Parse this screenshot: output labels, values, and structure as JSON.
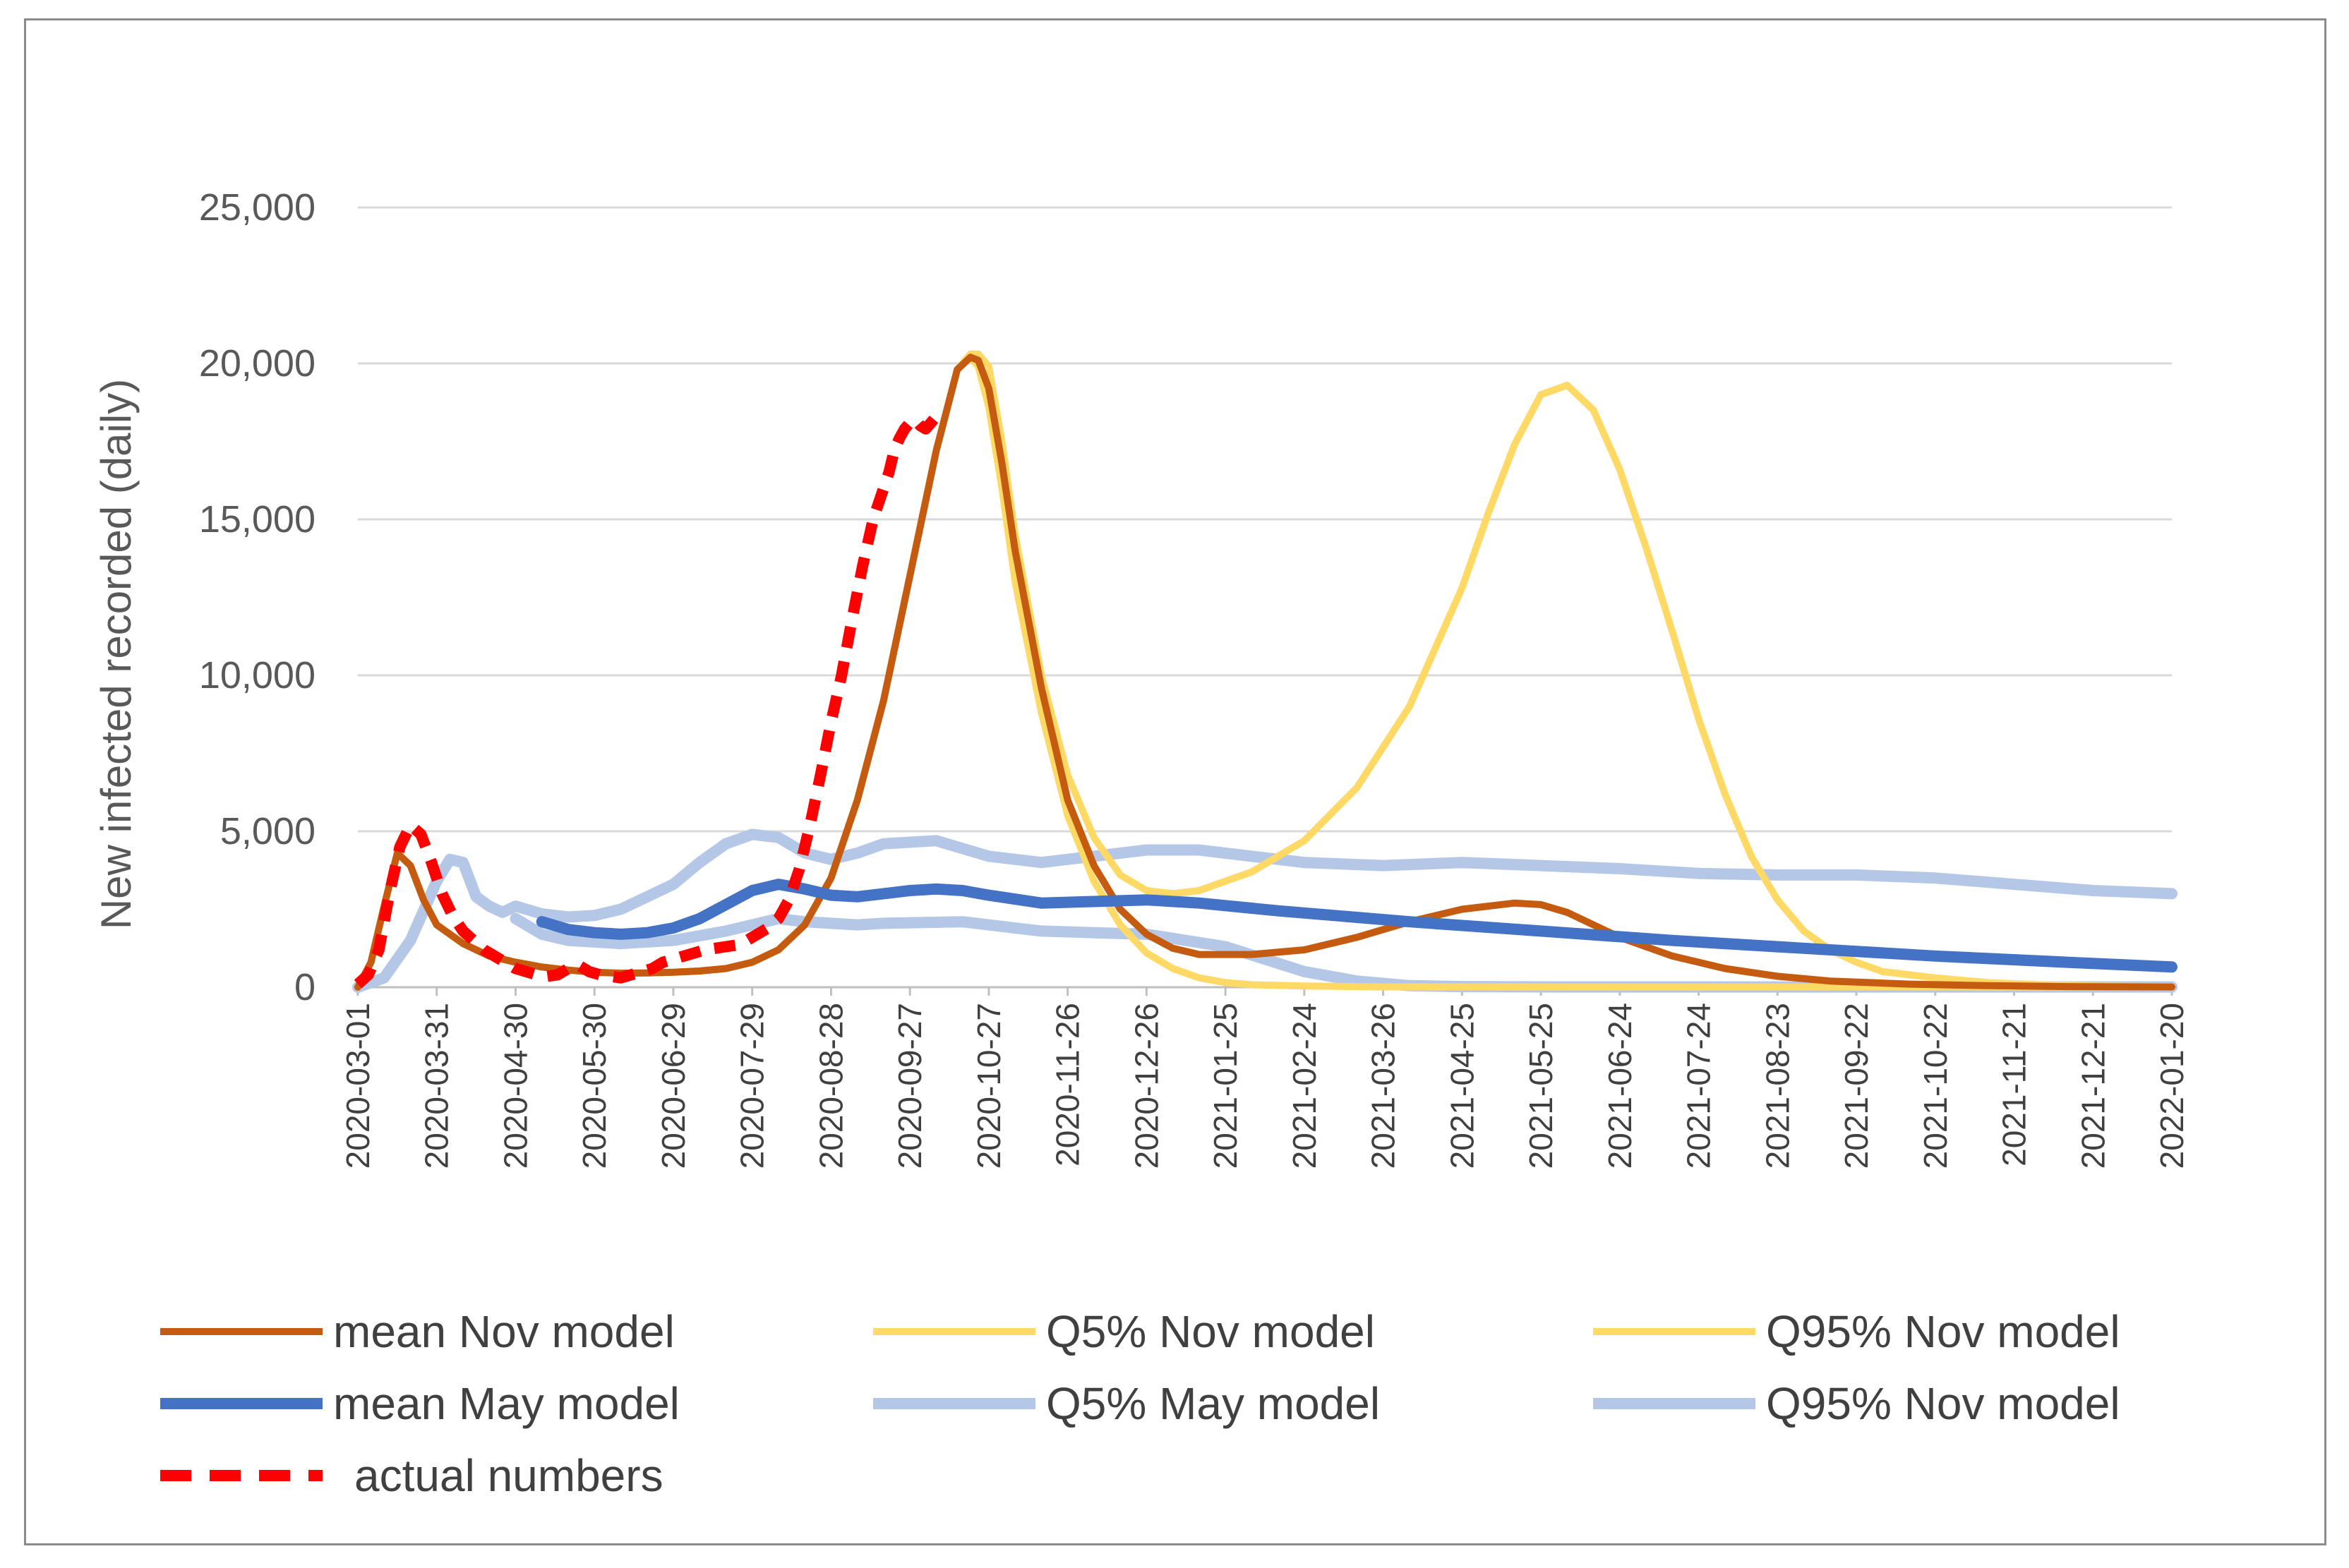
{
  "chart_data": {
    "type": "line",
    "title": "",
    "xlabel": "",
    "ylabel": "New infected recorded (daily)",
    "ylim": [
      0,
      25000
    ],
    "yticks": [
      0,
      5000,
      10000,
      15000,
      20000,
      25000
    ],
    "ytick_labels": [
      "0",
      "5,000",
      "10,000",
      "15,000",
      "20,000",
      "25,000"
    ],
    "xlim_days": [
      0,
      690
    ],
    "x_tick_labels": [
      "2020-03-01",
      "2020-03-31",
      "2020-04-30",
      "2020-05-30",
      "2020-06-29",
      "2020-07-29",
      "2020-08-28",
      "2020-09-27",
      "2020-10-27",
      "2020-11-26",
      "2020-12-26",
      "2021-01-25",
      "2021-02-24",
      "2021-03-26",
      "2021-04-25",
      "2021-05-25",
      "2021-06-24",
      "2021-07-24",
      "2021-08-23",
      "2021-09-22",
      "2021-10-22",
      "2021-11-21",
      "2021-12-21",
      "2022-01-20"
    ],
    "x_unit": "days since 2020-03-01",
    "gridlines": "horizontal",
    "legend_position": "bottom",
    "series": [
      {
        "name": "Q5% May model",
        "color": "#B4C7E7",
        "style": "solid",
        "weight": "thick",
        "x": [
          60,
          70,
          80,
          100,
          120,
          140,
          160,
          170,
          180,
          190,
          200,
          230,
          260,
          280,
          300,
          330,
          360,
          380,
          400,
          420,
          460,
          500,
          540,
          580,
          620,
          660,
          690
        ],
        "y": [
          2200,
          1700,
          1500,
          1400,
          1500,
          1800,
          2200,
          2100,
          2050,
          2000,
          2050,
          2100,
          1800,
          1750,
          1700,
          1300,
          500,
          200,
          50,
          20,
          10,
          10,
          10,
          10,
          10,
          10,
          10
        ]
      },
      {
        "name": "Q95% Nov model",
        "color": "#B4C7E7",
        "style": "solid",
        "weight": "thick",
        "x": [
          0,
          10,
          20,
          30,
          35,
          40,
          45,
          50,
          55,
          60,
          70,
          80,
          90,
          100,
          120,
          130,
          140,
          150,
          160,
          170,
          180,
          190,
          200,
          220,
          240,
          260,
          280,
          300,
          320,
          340,
          360,
          390,
          420,
          450,
          480,
          510,
          540,
          570,
          600,
          630,
          660,
          690
        ],
        "y": [
          0,
          300,
          1500,
          3400,
          4100,
          4000,
          2900,
          2600,
          2400,
          2600,
          2350,
          2250,
          2300,
          2500,
          3300,
          4000,
          4600,
          4900,
          4800,
          4300,
          4100,
          4300,
          4600,
          4700,
          4200,
          4000,
          4200,
          4400,
          4400,
          4200,
          4000,
          3900,
          4000,
          3900,
          3800,
          3650,
          3600,
          3600,
          3500,
          3300,
          3100,
          3000
        ]
      },
      {
        "name": "Q5% Nov model",
        "color": "#FFD966",
        "style": "solid",
        "weight": "normal",
        "x": [
          0,
          5,
          10,
          15,
          20,
          25,
          30,
          40,
          50,
          60,
          70,
          80,
          90,
          100,
          110,
          120,
          130,
          140,
          150,
          160,
          170,
          180,
          190,
          200,
          210,
          220,
          228,
          233,
          236,
          240,
          245,
          250,
          260,
          270,
          280,
          290,
          300,
          310,
          320,
          330,
          340,
          360,
          380,
          400,
          420,
          440,
          460,
          480,
          500,
          540,
          580,
          620,
          660,
          690
        ],
        "y": [
          0,
          800,
          2600,
          4300,
          3900,
          2800,
          2000,
          1400,
          1000,
          800,
          650,
          550,
          480,
          450,
          460,
          480,
          520,
          600,
          800,
          1200,
          2000,
          3500,
          6000,
          9200,
          13200,
          17200,
          19800,
          20200,
          19900,
          18600,
          16000,
          13000,
          8800,
          5500,
          3400,
          2000,
          1100,
          600,
          300,
          150,
          80,
          40,
          20,
          10,
          10,
          10,
          10,
          10,
          10,
          10,
          10,
          10,
          10,
          10
        ]
      },
      {
        "name": "Q95% Nov model",
        "color": "#FFD966",
        "style": "solid",
        "weight": "normal",
        "x": [
          0,
          5,
          10,
          15,
          20,
          25,
          30,
          40,
          50,
          60,
          70,
          80,
          90,
          100,
          110,
          120,
          130,
          140,
          150,
          160,
          170,
          180,
          190,
          200,
          210,
          220,
          228,
          233,
          236,
          240,
          245,
          250,
          260,
          270,
          280,
          290,
          300,
          310,
          320,
          340,
          360,
          380,
          400,
          420,
          430,
          440,
          450,
          460,
          470,
          480,
          490,
          500,
          510,
          520,
          530,
          540,
          550,
          560,
          570,
          580,
          600,
          620,
          640,
          660,
          690
        ],
        "y": [
          0,
          800,
          2600,
          4300,
          3900,
          2800,
          2000,
          1400,
          1000,
          800,
          650,
          550,
          480,
          450,
          460,
          480,
          520,
          600,
          800,
          1200,
          2000,
          3500,
          6000,
          9200,
          13200,
          17200,
          19800,
          20300,
          20300,
          19900,
          17500,
          14500,
          10000,
          6800,
          4800,
          3600,
          3100,
          3000,
          3100,
          3700,
          4700,
          6400,
          9000,
          12800,
          15200,
          17400,
          19000,
          19300,
          18500,
          16600,
          14100,
          11400,
          8600,
          6200,
          4200,
          2800,
          1800,
          1200,
          800,
          500,
          300,
          150,
          80,
          40,
          20
        ]
      },
      {
        "name": "mean Nov model",
        "color": "#C55A11",
        "style": "solid",
        "weight": "normal",
        "x": [
          0,
          5,
          10,
          15,
          20,
          25,
          30,
          40,
          50,
          60,
          70,
          80,
          90,
          100,
          110,
          120,
          130,
          140,
          150,
          160,
          170,
          180,
          190,
          200,
          210,
          220,
          228,
          233,
          236,
          240,
          245,
          250,
          260,
          270,
          280,
          290,
          300,
          310,
          320,
          340,
          360,
          380,
          400,
          420,
          440,
          450,
          460,
          470,
          480,
          500,
          520,
          540,
          560,
          590,
          620,
          650,
          690
        ],
        "y": [
          0,
          800,
          2600,
          4300,
          3900,
          2800,
          2000,
          1400,
          1000,
          800,
          650,
          550,
          480,
          450,
          460,
          480,
          520,
          600,
          800,
          1200,
          2000,
          3500,
          6000,
          9200,
          13200,
          17200,
          19800,
          20200,
          20100,
          19200,
          16800,
          14000,
          9600,
          6000,
          3900,
          2500,
          1700,
          1250,
          1050,
          1050,
          1200,
          1600,
          2100,
          2500,
          2700,
          2650,
          2400,
          2000,
          1600,
          1000,
          600,
          350,
          200,
          100,
          50,
          20,
          10
        ]
      },
      {
        "name": "mean May model",
        "color": "#4472C4",
        "style": "solid",
        "weight": "thick",
        "x": [
          70,
          80,
          90,
          100,
          110,
          120,
          130,
          140,
          150,
          160,
          170,
          180,
          190,
          200,
          210,
          220,
          230,
          240,
          260,
          280,
          300,
          320,
          350,
          400,
          450,
          500,
          550,
          600,
          650,
          690
        ],
        "y": [
          2100,
          1850,
          1750,
          1700,
          1750,
          1900,
          2200,
          2650,
          3100,
          3300,
          3150,
          2950,
          2900,
          3000,
          3100,
          3150,
          3100,
          2950,
          2700,
          2750,
          2800,
          2700,
          2450,
          2100,
          1800,
          1500,
          1250,
          1000,
          800,
          650
        ]
      },
      {
        "name": "actual numbers",
        "color": "#FF0000",
        "style": "dashed",
        "weight": "thick",
        "x": [
          0,
          4,
          8,
          12,
          16,
          20,
          24,
          28,
          32,
          36,
          40,
          44,
          48,
          52,
          56,
          60,
          64,
          68,
          72,
          76,
          80,
          84,
          88,
          92,
          96,
          100,
          104,
          108,
          112,
          116,
          120,
          124,
          128,
          132,
          136,
          140,
          144,
          148,
          152,
          156,
          160,
          164,
          168,
          172,
          176,
          180,
          184,
          188,
          192,
          196,
          200,
          202,
          204,
          206,
          208,
          210,
          212,
          214,
          216,
          218,
          220
        ],
        "y": [
          100,
          400,
          1200,
          3000,
          4500,
          5200,
          4900,
          4000,
          3000,
          2300,
          1800,
          1500,
          1200,
          1000,
          800,
          600,
          500,
          400,
          350,
          400,
          600,
          700,
          500,
          400,
          350,
          300,
          400,
          500,
          600,
          800,
          900,
          1000,
          1100,
          1200,
          1250,
          1300,
          1350,
          1500,
          1700,
          1900,
          2200,
          2800,
          3800,
          5200,
          6800,
          8500,
          10000,
          11800,
          13500,
          15000,
          16000,
          16500,
          17200,
          17600,
          17900,
          18100,
          18200,
          18000,
          17900,
          18100,
          18300
        ]
      }
    ]
  }
}
